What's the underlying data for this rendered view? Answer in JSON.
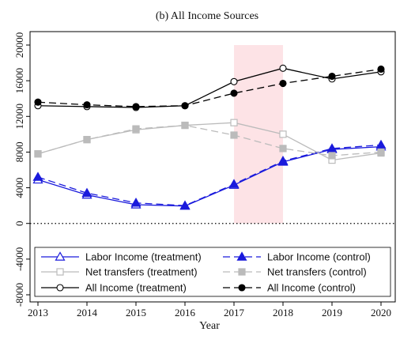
{
  "chart_data": {
    "type": "line",
    "title": "(b)  All Income Sources",
    "xlabel": "Year",
    "ylabel": "",
    "x": [
      2013,
      2014,
      2015,
      2016,
      2017,
      2018,
      2019,
      2020
    ],
    "x_tick_labels": [
      "2013",
      "2014",
      "2015",
      "2016",
      "2017",
      "2018",
      "2019",
      "2020"
    ],
    "xlim": [
      2013,
      2020
    ],
    "ylim": [
      -8000,
      20000
    ],
    "y_ticks": [
      -8000,
      -4000,
      0,
      4000,
      8000,
      12000,
      16000,
      20000
    ],
    "y_tick_labels": [
      "-8000",
      "-4000",
      "0",
      "4000",
      "8000",
      "12000",
      "16000",
      "20000"
    ],
    "grid": false,
    "zero_line": "dotted",
    "shaded_region": {
      "x_from": 2017,
      "x_to": 2018,
      "color": "#fde3e6"
    },
    "legend_placement": "bottom",
    "series": [
      {
        "name": "Labor Income (treatment)",
        "color": "#1a1adc",
        "line_style": "solid",
        "marker": "open-triangle",
        "values": [
          4900,
          3200,
          2100,
          1950,
          4300,
          6900,
          8300,
          8600
        ]
      },
      {
        "name": "Labor Income (control)",
        "color": "#1a1adc",
        "line_style": "dashed",
        "marker": "filled-triangle",
        "values": [
          5200,
          3400,
          2300,
          2000,
          4400,
          7000,
          8400,
          8800
        ]
      },
      {
        "name": "Net transfers (treatment)",
        "color": "#bbbbbb",
        "line_style": "solid",
        "marker": "open-square",
        "values": [
          7800,
          9400,
          10500,
          11000,
          11300,
          10000,
          7100,
          7900
        ]
      },
      {
        "name": "Net transfers (control)",
        "color": "#bbbbbb",
        "line_style": "dashed",
        "marker": "filled-square",
        "values": [
          7800,
          9400,
          10600,
          11000,
          9900,
          8400,
          7600,
          8000
        ]
      },
      {
        "name": "All Income (treatment)",
        "color": "#000000",
        "line_style": "solid",
        "marker": "open-circle",
        "values": [
          13200,
          13100,
          13000,
          13200,
          15900,
          17400,
          16200,
          17000
        ]
      },
      {
        "name": "All Income (control)",
        "color": "#000000",
        "line_style": "dashed",
        "marker": "filled-circle",
        "values": [
          13600,
          13300,
          13100,
          13200,
          14600,
          15700,
          16500,
          17300
        ]
      }
    ]
  }
}
